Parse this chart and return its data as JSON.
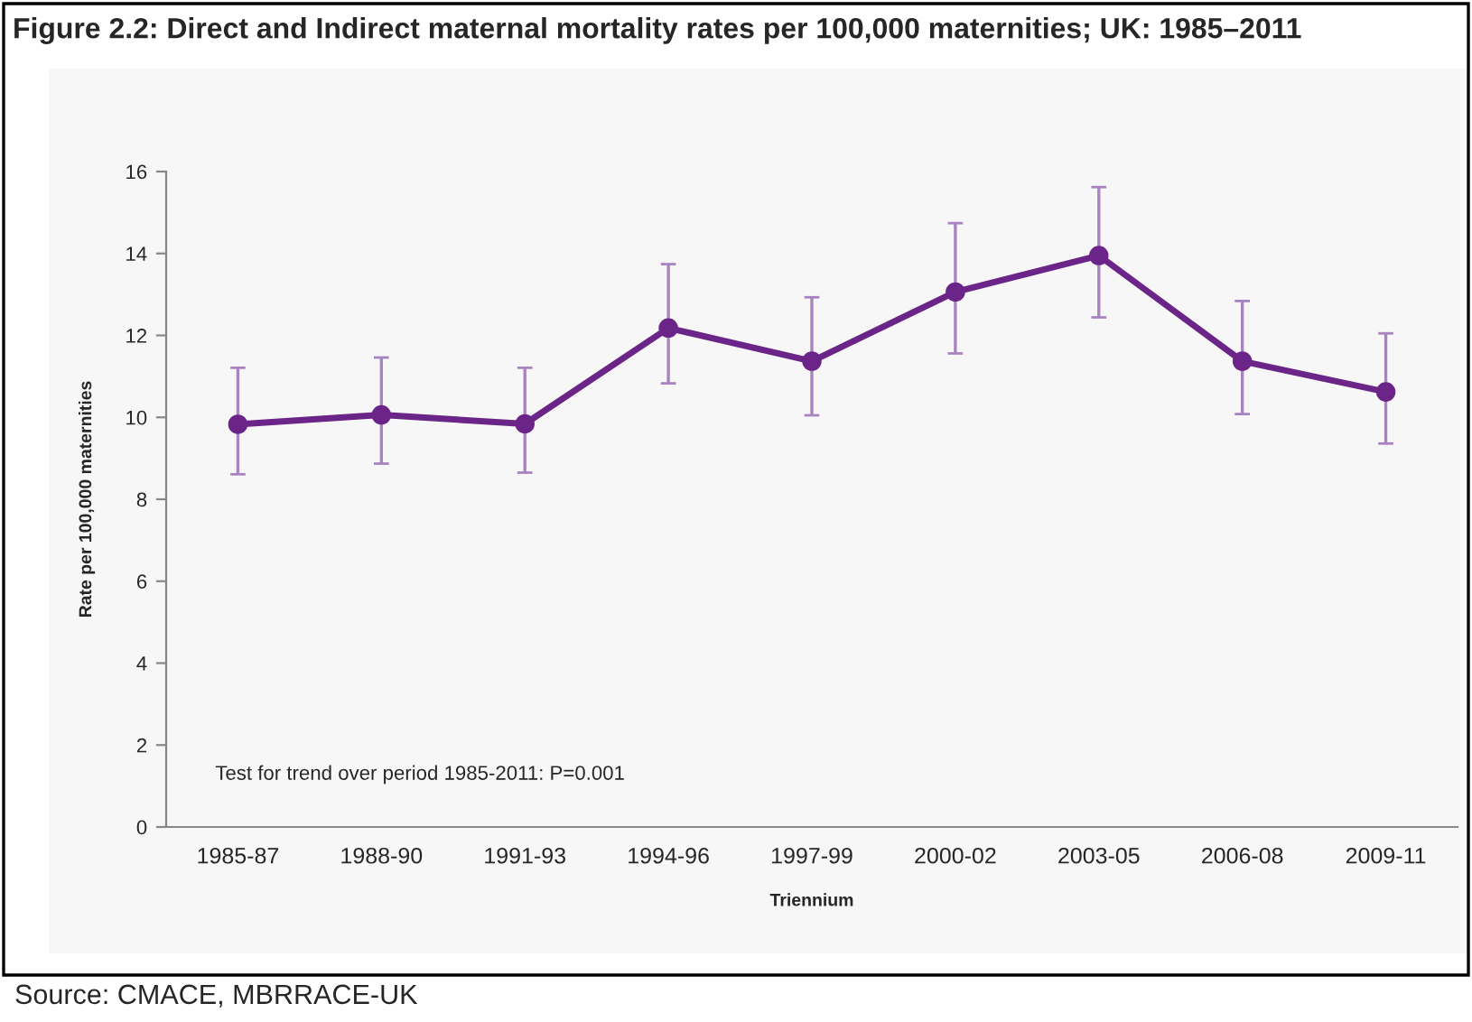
{
  "chart_data": {
    "type": "line",
    "title": "Figure 2.2: Direct and Indirect maternal mortality rates per 100,000 maternities; UK: 1985–2011",
    "xlabel": "Triennium",
    "ylabel": "Rate per 100,000 maternities",
    "categories": [
      "1985-87",
      "1988-90",
      "1991-93",
      "1994-96",
      "1997-99",
      "2000-02",
      "2003-05",
      "2006-08",
      "2009-11"
    ],
    "series": [
      {
        "color": "#6b2488",
        "values": [
          9.83,
          10.06,
          9.84,
          12.18,
          11.37,
          13.06,
          13.95,
          11.37,
          10.62
        ],
        "errors": [
          [
            8.61,
            11.21
          ],
          [
            8.87,
            11.46
          ],
          [
            8.65,
            11.21
          ],
          [
            10.83,
            13.74
          ],
          [
            10.05,
            12.93
          ],
          [
            11.56,
            14.74
          ],
          [
            12.44,
            15.62
          ],
          [
            10.08,
            12.84
          ],
          [
            9.36,
            12.05
          ]
        ]
      }
    ],
    "ylim": [
      0,
      16
    ],
    "yticks": [
      0,
      2,
      4,
      6,
      8,
      10,
      12,
      14,
      16
    ],
    "marker": "circle",
    "line_style": "solid",
    "grid": false,
    "legend": false,
    "annotations": [
      "Test for trend over period 1985-2011: P=0.001",
      "Source: CMACE, MBRRACE-UK"
    ]
  }
}
